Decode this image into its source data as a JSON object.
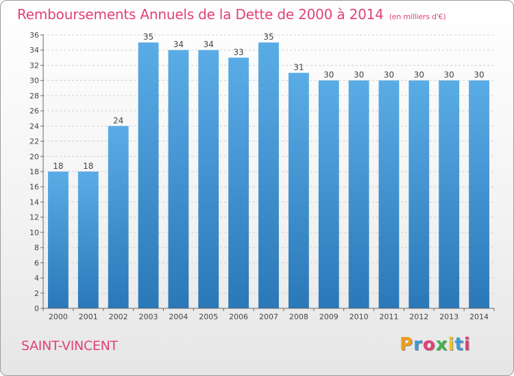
{
  "chart_data": {
    "type": "bar",
    "title": "Remboursements Annuels de la Dette de 2000 à 2014",
    "unit_label": "(en milliers d'€)",
    "categories": [
      "2000",
      "2001",
      "2002",
      "2003",
      "2004",
      "2005",
      "2006",
      "2007",
      "2008",
      "2009",
      "2010",
      "2011",
      "2012",
      "2013",
      "2014"
    ],
    "values": [
      18,
      18,
      24,
      35,
      34,
      34,
      33,
      35,
      31,
      30,
      30,
      30,
      30,
      30,
      30
    ],
    "ylim": [
      0,
      36
    ],
    "yticks": [
      0,
      2,
      4,
      6,
      8,
      10,
      12,
      14,
      16,
      18,
      20,
      22,
      24,
      26,
      28,
      30,
      32,
      34,
      36
    ],
    "grid": true,
    "xlabel": "",
    "ylabel": ""
  },
  "footer": {
    "commune": "SAINT-VINCENT",
    "logo_letters": [
      "P",
      "r",
      "o",
      "x",
      "i",
      "t",
      "i"
    ]
  },
  "colors": {
    "bar_top": "#5aace6",
    "bar_bottom": "#2a78b8",
    "accent": "#e0417a"
  }
}
